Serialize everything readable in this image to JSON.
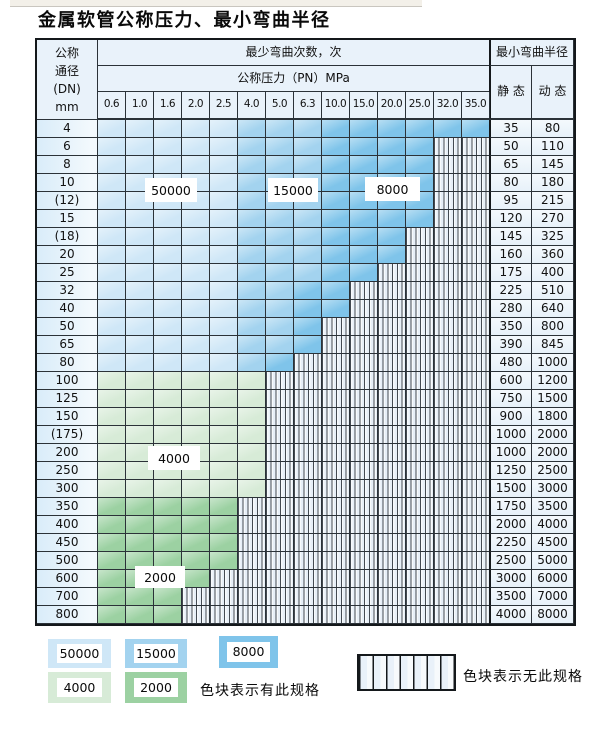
{
  "title": "金属软管公称压力、最小弯曲半径",
  "table": {
    "header": {
      "dn_label": "公称\n通径\n(DN)\nmm",
      "bend_times_label": "最少弯曲次数，次",
      "pressure_label": "公称压力（PN）MPa",
      "pressures": [
        "0.6",
        "1.0",
        "1.6",
        "2.0",
        "2.5",
        "4.0",
        "5.0",
        "6.3",
        "10.0",
        "15.0",
        "20.0",
        "25.0",
        "32.0",
        "35.0"
      ],
      "radius_label": "最小弯曲半径",
      "static_label": "静 态",
      "dynamic_label": "动 态"
    },
    "zone_labels": [
      {
        "text": "50000"
      },
      {
        "text": "15000"
      },
      {
        "text": "8000"
      },
      {
        "text": "4000"
      },
      {
        "text": "2000"
      }
    ],
    "rows": [
      {
        "dn": "4",
        "cells": [
          "b1",
          "b1",
          "b1",
          "b1",
          "b1",
          "b2",
          "b2",
          "b2",
          "b3",
          "b3",
          "b3",
          "b3",
          "b3",
          "b3"
        ],
        "static": "35",
        "dynamic": "80"
      },
      {
        "dn": "6",
        "cells": [
          "b1",
          "b1",
          "b1",
          "b1",
          "b1",
          "b2",
          "b2",
          "b2",
          "b3",
          "b3",
          "b3",
          "b3",
          "x",
          "x"
        ],
        "static": "50",
        "dynamic": "110"
      },
      {
        "dn": "8",
        "cells": [
          "b1",
          "b1",
          "b1",
          "b1",
          "b1",
          "b2",
          "b2",
          "b2",
          "b3",
          "b3",
          "b3",
          "b3",
          "x",
          "x"
        ],
        "static": "65",
        "dynamic": "145"
      },
      {
        "dn": "10",
        "cells": [
          "b1",
          "b1",
          "b1",
          "b1",
          "b1",
          "b2",
          "b2",
          "b2",
          "b3",
          "b3",
          "b3",
          "b3",
          "x",
          "x"
        ],
        "static": "80",
        "dynamic": "180"
      },
      {
        "dn": "(12)",
        "cells": [
          "b1",
          "b1",
          "b1",
          "b1",
          "b1",
          "b2",
          "b2",
          "b2",
          "b3",
          "b3",
          "b3",
          "b3",
          "x",
          "x"
        ],
        "static": "95",
        "dynamic": "215"
      },
      {
        "dn": "15",
        "cells": [
          "b1",
          "b1",
          "b1",
          "b1",
          "b1",
          "b2",
          "b2",
          "b2",
          "b3",
          "b3",
          "b3",
          "b3",
          "x",
          "x"
        ],
        "static": "120",
        "dynamic": "270"
      },
      {
        "dn": "(18)",
        "cells": [
          "b1",
          "b1",
          "b1",
          "b1",
          "b1",
          "b2",
          "b2",
          "b2",
          "b3",
          "b3",
          "b3",
          "x",
          "x",
          "x"
        ],
        "static": "145",
        "dynamic": "325"
      },
      {
        "dn": "20",
        "cells": [
          "b1",
          "b1",
          "b1",
          "b1",
          "b1",
          "b2",
          "b2",
          "b2",
          "b3",
          "b3",
          "b3",
          "x",
          "x",
          "x"
        ],
        "static": "160",
        "dynamic": "360"
      },
      {
        "dn": "25",
        "cells": [
          "b1",
          "b1",
          "b1",
          "b1",
          "b1",
          "b2",
          "b2",
          "b2",
          "b3",
          "b3",
          "x",
          "x",
          "x",
          "x"
        ],
        "static": "175",
        "dynamic": "400"
      },
      {
        "dn": "32",
        "cells": [
          "b1",
          "b1",
          "b1",
          "b1",
          "b1",
          "b2",
          "b2",
          "b3",
          "b3",
          "x",
          "x",
          "x",
          "x",
          "x"
        ],
        "static": "225",
        "dynamic": "510"
      },
      {
        "dn": "40",
        "cells": [
          "b1",
          "b1",
          "b1",
          "b1",
          "b1",
          "b2",
          "b2",
          "b3",
          "b3",
          "x",
          "x",
          "x",
          "x",
          "x"
        ],
        "static": "280",
        "dynamic": "640"
      },
      {
        "dn": "50",
        "cells": [
          "b1",
          "b1",
          "b1",
          "b1",
          "b1",
          "b2",
          "b2",
          "b3",
          "x",
          "x",
          "x",
          "x",
          "x",
          "x"
        ],
        "static": "350",
        "dynamic": "800"
      },
      {
        "dn": "65",
        "cells": [
          "b1",
          "b1",
          "b1",
          "b1",
          "b1",
          "b2",
          "b2",
          "b3",
          "x",
          "x",
          "x",
          "x",
          "x",
          "x"
        ],
        "static": "390",
        "dynamic": "845"
      },
      {
        "dn": "80",
        "cells": [
          "b1",
          "b1",
          "b1",
          "b1",
          "b1",
          "b2",
          "b3",
          "x",
          "x",
          "x",
          "x",
          "x",
          "x",
          "x"
        ],
        "static": "480",
        "dynamic": "1000"
      },
      {
        "dn": "100",
        "cells": [
          "g1",
          "g1",
          "g1",
          "g1",
          "g1",
          "g1",
          "x",
          "x",
          "x",
          "x",
          "x",
          "x",
          "x",
          "x"
        ],
        "static": "600",
        "dynamic": "1200"
      },
      {
        "dn": "125",
        "cells": [
          "g1",
          "g1",
          "g1",
          "g1",
          "g1",
          "g1",
          "x",
          "x",
          "x",
          "x",
          "x",
          "x",
          "x",
          "x"
        ],
        "static": "750",
        "dynamic": "1500"
      },
      {
        "dn": "150",
        "cells": [
          "g1",
          "g1",
          "g1",
          "g1",
          "g1",
          "g1",
          "x",
          "x",
          "x",
          "x",
          "x",
          "x",
          "x",
          "x"
        ],
        "static": "900",
        "dynamic": "1800"
      },
      {
        "dn": "(175)",
        "cells": [
          "g1",
          "g1",
          "g1",
          "g1",
          "g1",
          "g1",
          "x",
          "x",
          "x",
          "x",
          "x",
          "x",
          "x",
          "x"
        ],
        "static": "1000",
        "dynamic": "2000"
      },
      {
        "dn": "200",
        "cells": [
          "g1",
          "g1",
          "g1",
          "g1",
          "g1",
          "g1",
          "x",
          "x",
          "x",
          "x",
          "x",
          "x",
          "x",
          "x"
        ],
        "static": "1000",
        "dynamic": "2000"
      },
      {
        "dn": "250",
        "cells": [
          "g1",
          "g1",
          "g1",
          "g1",
          "g1",
          "g1",
          "x",
          "x",
          "x",
          "x",
          "x",
          "x",
          "x",
          "x"
        ],
        "static": "1250",
        "dynamic": "2500"
      },
      {
        "dn": "300",
        "cells": [
          "g1",
          "g1",
          "g1",
          "g1",
          "g1",
          "g1",
          "x",
          "x",
          "x",
          "x",
          "x",
          "x",
          "x",
          "x"
        ],
        "static": "1500",
        "dynamic": "3000"
      },
      {
        "dn": "350",
        "cells": [
          "g2",
          "g2",
          "g2",
          "g2",
          "g2",
          "x",
          "x",
          "x",
          "x",
          "x",
          "x",
          "x",
          "x",
          "x"
        ],
        "static": "1750",
        "dynamic": "3500"
      },
      {
        "dn": "400",
        "cells": [
          "g2",
          "g2",
          "g2",
          "g2",
          "g2",
          "x",
          "x",
          "x",
          "x",
          "x",
          "x",
          "x",
          "x",
          "x"
        ],
        "static": "2000",
        "dynamic": "4000"
      },
      {
        "dn": "450",
        "cells": [
          "g2",
          "g2",
          "g2",
          "g2",
          "g2",
          "x",
          "x",
          "x",
          "x",
          "x",
          "x",
          "x",
          "x",
          "x"
        ],
        "static": "2250",
        "dynamic": "4500"
      },
      {
        "dn": "500",
        "cells": [
          "g2",
          "g2",
          "g2",
          "g2",
          "g2",
          "x",
          "x",
          "x",
          "x",
          "x",
          "x",
          "x",
          "x",
          "x"
        ],
        "static": "2500",
        "dynamic": "5000"
      },
      {
        "dn": "600",
        "cells": [
          "g2",
          "g2",
          "g2",
          "g2",
          "x",
          "x",
          "x",
          "x",
          "x",
          "x",
          "x",
          "x",
          "x",
          "x"
        ],
        "static": "3000",
        "dynamic": "6000"
      },
      {
        "dn": "700",
        "cells": [
          "g2",
          "g2",
          "g2",
          "x",
          "x",
          "x",
          "x",
          "x",
          "x",
          "x",
          "x",
          "x",
          "x",
          "x"
        ],
        "static": "3500",
        "dynamic": "7000"
      },
      {
        "dn": "800",
        "cells": [
          "g2",
          "g2",
          "g2",
          "x",
          "x",
          "x",
          "x",
          "x",
          "x",
          "x",
          "x",
          "x",
          "x",
          "x"
        ],
        "static": "4000",
        "dynamic": "8000"
      }
    ]
  },
  "legend": {
    "has_spec_items": [
      {
        "value": "50000"
      },
      {
        "value": "15000"
      },
      {
        "value": "8000"
      },
      {
        "value": "4000"
      },
      {
        "value": "2000"
      }
    ],
    "has_spec_note": "色块表示有此规格",
    "no_spec_note": "色块表示无此规格"
  },
  "colors": {
    "bend_50000": "#cfe7f7",
    "bend_15000": "#a3d3ef",
    "bend_8000": "#7fc4ea",
    "bend_4000": "#d7ebd7",
    "bend_2000": "#9cd1a2",
    "header_bg": "#e9f2fa",
    "stripe_tint": "#e7eff7"
  }
}
